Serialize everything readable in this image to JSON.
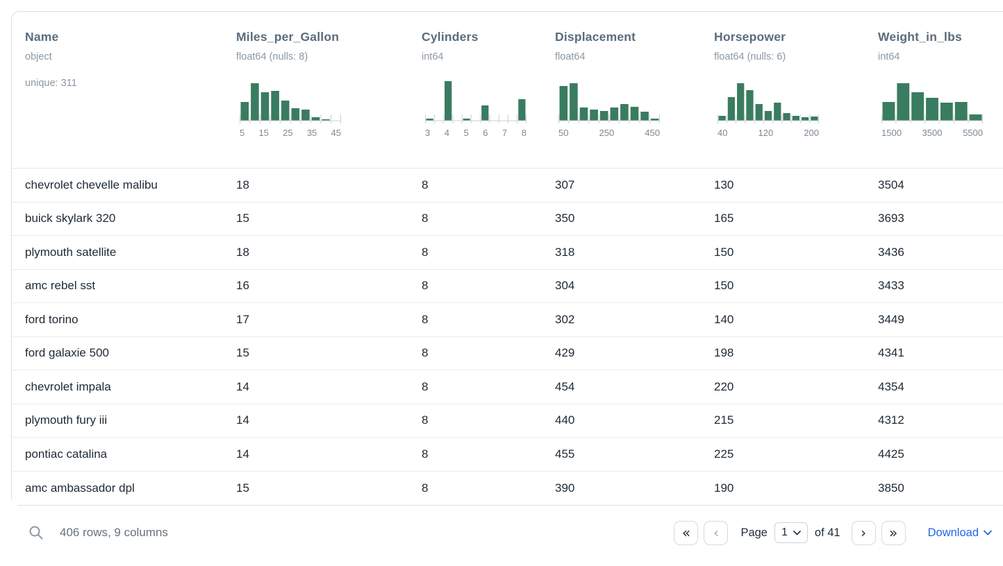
{
  "table": {
    "columns": [
      {
        "name": "Name",
        "type": "object",
        "meta": "unique: 311"
      },
      {
        "name": "Miles_per_Gallon",
        "type": "float64 (nulls: 8)",
        "histogram": {
          "type": "bar",
          "bars": [
            0.48,
            0.95,
            0.72,
            0.75,
            0.5,
            0.32,
            0.28,
            0.08,
            0.03,
            0
          ],
          "tick_labels": [
            "5",
            "15",
            "25",
            "35",
            "45"
          ]
        }
      },
      {
        "name": "Cylinders",
        "type": "int64",
        "histogram": {
          "type": "bar",
          "bars": [
            0.05,
            0,
            1,
            0,
            0.05,
            0,
            0.38,
            0,
            0,
            0,
            0.55
          ],
          "tick_labels": [
            "3",
            "4",
            "5",
            "6",
            "7",
            "8"
          ]
        }
      },
      {
        "name": "Displacement",
        "type": "float64",
        "histogram": {
          "type": "bar",
          "bars": [
            0.88,
            0.95,
            0.33,
            0.28,
            0.25,
            0.33,
            0.42,
            0.35,
            0.22,
            0.05
          ],
          "tick_labels": [
            "50",
            "250",
            "450"
          ]
        }
      },
      {
        "name": "Horsepower",
        "type": "float64 (nulls: 6)",
        "histogram": {
          "type": "bar",
          "bars": [
            0.12,
            0.6,
            0.95,
            0.78,
            0.42,
            0.25,
            0.45,
            0.2,
            0.12,
            0.08,
            0.1
          ],
          "tick_labels": [
            "40",
            "120",
            "200"
          ]
        }
      },
      {
        "name": "Weight_in_lbs",
        "type": "int64",
        "histogram": {
          "type": "bar",
          "bars": [
            0.48,
            0.95,
            0.72,
            0.58,
            0.45,
            0.48,
            0.15
          ],
          "tick_labels": [
            "1500",
            "3500",
            "5500"
          ]
        }
      }
    ],
    "rows": [
      [
        "chevrolet chevelle malibu",
        "18",
        "8",
        "307",
        "130",
        "3504"
      ],
      [
        "buick skylark 320",
        "15",
        "8",
        "350",
        "165",
        "3693"
      ],
      [
        "plymouth satellite",
        "18",
        "8",
        "318",
        "150",
        "3436"
      ],
      [
        "amc rebel sst",
        "16",
        "8",
        "304",
        "150",
        "3433"
      ],
      [
        "ford torino",
        "17",
        "8",
        "302",
        "140",
        "3449"
      ],
      [
        "ford galaxie 500",
        "15",
        "8",
        "429",
        "198",
        "4341"
      ],
      [
        "chevrolet impala",
        "14",
        "8",
        "454",
        "220",
        "4354"
      ],
      [
        "plymouth fury iii",
        "14",
        "8",
        "440",
        "215",
        "4312"
      ],
      [
        "pontiac catalina",
        "14",
        "8",
        "455",
        "225",
        "4425"
      ],
      [
        "amc ambassador dpl",
        "15",
        "8",
        "390",
        "190",
        "3850"
      ]
    ]
  },
  "footer": {
    "summary": "406 rows, 9 columns",
    "page_label": "Page",
    "page_value": "1",
    "of_label": "of 41",
    "download_label": "Download"
  },
  "colors": {
    "histogram_green": "#3a7c60",
    "link_blue": "#2563eb",
    "header_text": "#5a6c7d"
  }
}
